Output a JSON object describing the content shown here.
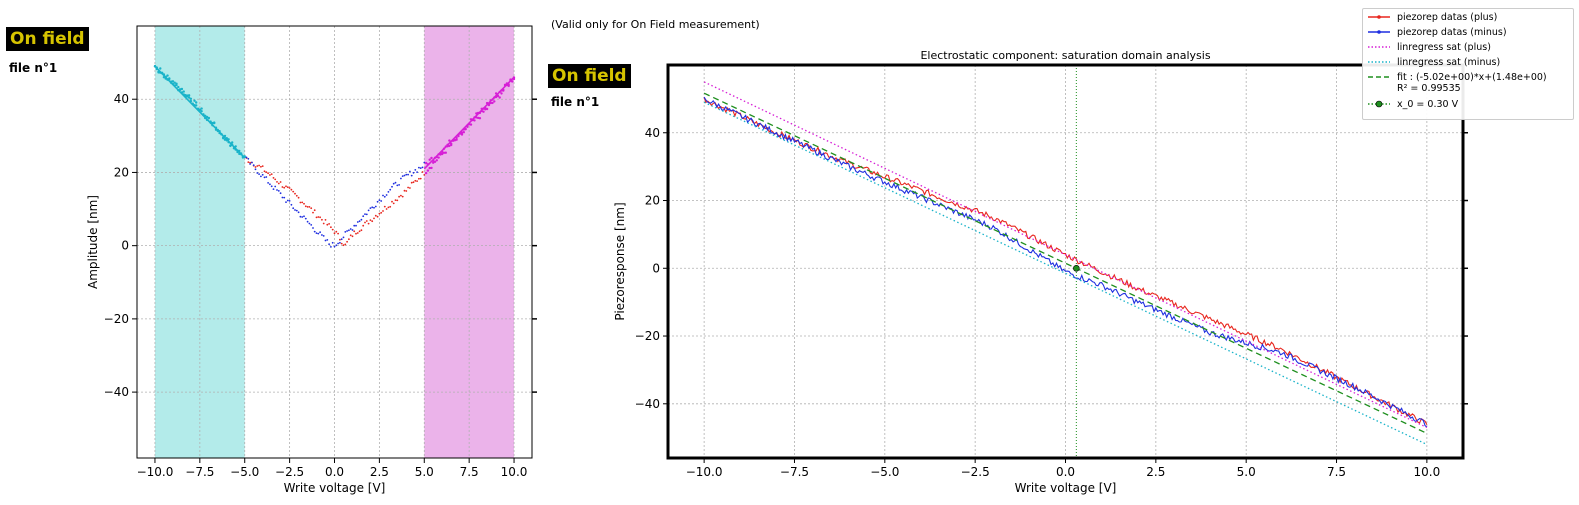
{
  "left_panel": {
    "badge": "On field",
    "file_label": "file n°1"
  },
  "right_panel": {
    "badge": "On field",
    "file_label": "file n°1",
    "note": "(Valid only for On Field measurement)"
  },
  "colors": {
    "plus": "#e8261e",
    "minus": "#1f2fe0",
    "lin_plus": "#d61fd6",
    "lin_minus": "#19b3c9",
    "fit": "#1e8f1e",
    "band_neg": "#b3ebea",
    "band_pos": "#ebb3ea",
    "badge_text": "#d6c400"
  },
  "legend": [
    {
      "label": "piezorep datas (plus)",
      "style": "solid-marker",
      "color": "#e8261e"
    },
    {
      "label": "piezorep datas (minus)",
      "style": "solid-marker",
      "color": "#1f2fe0"
    },
    {
      "label": "linregress sat (plus)",
      "style": "dotted",
      "color": "#d61fd6"
    },
    {
      "label": "linregress sat (minus)",
      "style": "dotted",
      "color": "#19b3c9"
    },
    {
      "label": "fit : (-5.02e+00)*x+(1.48e+00)\nR² = 0.99535",
      "style": "dashed",
      "color": "#1e8f1e"
    },
    {
      "label": "x_0 = 0.30 V",
      "style": "dot-marker",
      "color": "#1e8f1e"
    }
  ],
  "chart_data": [
    {
      "type": "scatter",
      "title": "",
      "xlabel": "Write voltage [V]",
      "ylabel": "Amplitude [nm]",
      "xlim": [
        -11,
        11
      ],
      "ylim": [
        -58,
        60
      ],
      "xticks": [
        -10,
        -7.5,
        -5,
        -2.5,
        0,
        2.5,
        5,
        7.5,
        10
      ],
      "xtick_labels": [
        "−10.0",
        "−7.5",
        "−5.0",
        "−2.5",
        "0.0",
        "2.5",
        "5.0",
        "7.5",
        "10.0"
      ],
      "yticks": [
        -40,
        -20,
        0,
        20,
        40
      ],
      "ytick_labels": [
        "−40",
        "−20",
        "0",
        "20",
        "40"
      ],
      "grid": true,
      "shaded_ranges": [
        {
          "x": [
            -10,
            -5
          ],
          "color": "#b3ebea"
        },
        {
          "x": [
            5,
            10
          ],
          "color": "#ebb3ea"
        }
      ],
      "series": [
        {
          "name": "plus",
          "color": "#e8261e",
          "x": [
            -10,
            -8,
            -6,
            -5,
            -4,
            -3,
            -2,
            -1,
            0,
            0.6,
            1,
            2,
            3,
            4,
            5,
            6,
            7,
            8,
            9,
            10
          ],
          "y": [
            49,
            40,
            29,
            24,
            21,
            17,
            13,
            8.5,
            4,
            0,
            3,
            7,
            11,
            15,
            20,
            25,
            30,
            35,
            40,
            46
          ]
        },
        {
          "name": "minus",
          "color": "#1f2fe0",
          "x": [
            -10,
            -8,
            -6,
            -5,
            -4,
            -3,
            -2,
            -1,
            -0.3,
            0,
            1,
            2,
            3,
            4,
            5,
            6,
            7,
            8,
            9,
            10
          ],
          "y": [
            49,
            40,
            29,
            24,
            19,
            14,
            9,
            4,
            0.5,
            0,
            5,
            10,
            15,
            19,
            22,
            26,
            31,
            36,
            41,
            46
          ]
        }
      ]
    },
    {
      "type": "line",
      "title": "Electrostatic component: saturation domain analysis",
      "xlabel": "Write voltage [V]",
      "ylabel": "Piezoresponse [nm]",
      "xlim": [
        -11,
        11
      ],
      "ylim": [
        -56,
        60
      ],
      "xticks": [
        -10,
        -7.5,
        -5,
        -2.5,
        0,
        2.5,
        5,
        7.5,
        10
      ],
      "xtick_labels": [
        "−10.0",
        "−7.5",
        "−5.0",
        "−2.5",
        "0.0",
        "2.5",
        "5.0",
        "7.5",
        "10.0"
      ],
      "yticks": [
        -40,
        -20,
        0,
        20,
        40
      ],
      "ytick_labels": [
        "−40",
        "−20",
        "0",
        "20",
        "40"
      ],
      "grid": true,
      "vline_x": 0.3,
      "series": [
        {
          "name": "piezorep datas (plus)",
          "color": "#e8261e",
          "x": [
            -10,
            -8,
            -6,
            -4,
            -2,
            0,
            2,
            4,
            6,
            8,
            10
          ],
          "y": [
            50,
            40,
            31,
            23,
            15,
            4,
            -6,
            -15,
            -24,
            -35,
            -46
          ]
        },
        {
          "name": "piezorep datas (minus)",
          "color": "#1f2fe0",
          "x": [
            -10,
            -8,
            -6,
            -4,
            -2,
            0,
            1,
            2,
            4,
            6,
            8,
            10
          ],
          "y": [
            50,
            40,
            30,
            21,
            12,
            -1,
            -5,
            -10,
            -19,
            -25,
            -35,
            -46
          ]
        },
        {
          "name": "linregress sat (plus)",
          "color": "#d61fd6",
          "style": "dotted",
          "x": [
            -10,
            10
          ],
          "y": [
            55,
            -47
          ]
        },
        {
          "name": "linregress sat (minus)",
          "color": "#19b3c9",
          "style": "dotted",
          "x": [
            -10,
            10
          ],
          "y": [
            49,
            -52
          ]
        },
        {
          "name": "fit",
          "color": "#1e8f1e",
          "style": "dashed",
          "x": [
            -10,
            10
          ],
          "y": [
            51.68,
            -48.72
          ]
        }
      ],
      "point": {
        "name": "x_0",
        "x": 0.3,
        "y": 0
      }
    }
  ]
}
